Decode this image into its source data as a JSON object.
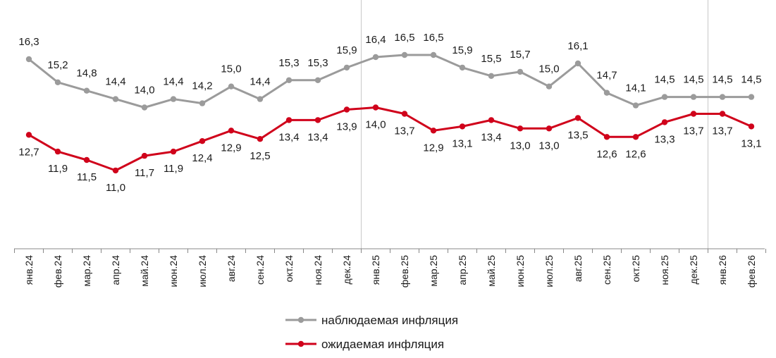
{
  "chart_data": {
    "type": "line",
    "categories": [
      "янв.24",
      "фев.24",
      "мар.24",
      "апр.24",
      "май.24",
      "июн.24",
      "июл.24",
      "авг.24",
      "сен.24",
      "окт.24",
      "ноя.24",
      "дек.24",
      "янв.25",
      "фев.25",
      "мар.25",
      "апр.25",
      "май.25",
      "июн.25",
      "июл.25",
      "авг.25",
      "сен.25",
      "окт.25",
      "ноя.25",
      "дек.25",
      "янв.26",
      "фев.26"
    ],
    "series": [
      {
        "name": "наблюдаемая инфляция",
        "color": "#9b9b9b",
        "values": [
          16.3,
          15.2,
          14.8,
          14.4,
          14.0,
          14.4,
          14.2,
          15.0,
          14.4,
          15.3,
          15.3,
          15.9,
          16.4,
          16.5,
          16.5,
          15.9,
          15.5,
          15.7,
          15.0,
          16.1,
          14.7,
          14.1,
          14.5,
          14.5,
          14.5,
          14.5
        ],
        "labels": [
          "16,3",
          "15,2",
          "14,8",
          "14,4",
          "14,0",
          "14,4",
          "14,2",
          "15,0",
          "14,4",
          "15,3",
          "15,3",
          "15,9",
          "16,4",
          "16,5",
          "16,5",
          "15,9",
          "15,5",
          "15,7",
          "15,0",
          "16,1",
          "14,7",
          "14,1",
          "14,5",
          "14,5",
          "14,5",
          "14,5"
        ]
      },
      {
        "name": "ожидаемая инфляция",
        "color": "#d0021b",
        "values": [
          12.7,
          11.9,
          11.5,
          11.0,
          11.7,
          11.9,
          12.4,
          12.9,
          12.5,
          13.4,
          13.4,
          13.9,
          14.0,
          13.7,
          12.9,
          13.1,
          13.4,
          13.0,
          13.0,
          13.5,
          12.6,
          12.6,
          13.3,
          13.7,
          13.7,
          13.1
        ],
        "labels": [
          "12,7",
          "11,9",
          "11,5",
          "11,0",
          "11,7",
          "11,9",
          "12,4",
          "12,9",
          "12,5",
          "13,4",
          "13,4",
          "13,9",
          "14,0",
          "13,7",
          "12,9",
          "13,1",
          "13,4",
          "13,0",
          "13,0",
          "13,5",
          "12,6",
          "12,6",
          "13,3",
          "13,7",
          "13,7",
          "13,1"
        ]
      }
    ],
    "year_separators_after": [
      "дек.24",
      "дек.25"
    ],
    "legend_position": "bottom",
    "grid": false
  }
}
